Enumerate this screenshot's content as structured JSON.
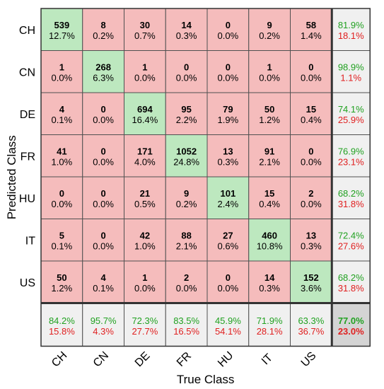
{
  "chart_data": {
    "type": "heatmap",
    "subtype": "confusion-matrix",
    "xlabel": "True Class",
    "ylabel": "Predicted Class",
    "classes": [
      "CH",
      "CN",
      "DE",
      "FR",
      "HU",
      "IT",
      "US"
    ],
    "counts": [
      [
        539,
        8,
        30,
        14,
        0,
        9,
        58
      ],
      [
        1,
        268,
        1,
        0,
        0,
        1,
        0
      ],
      [
        4,
        0,
        694,
        95,
        79,
        50,
        15
      ],
      [
        41,
        0,
        171,
        1052,
        13,
        91,
        0
      ],
      [
        0,
        0,
        21,
        9,
        101,
        15,
        2
      ],
      [
        5,
        0,
        42,
        88,
        27,
        460,
        13
      ],
      [
        50,
        4,
        1,
        2,
        0,
        14,
        152
      ]
    ],
    "percents": [
      [
        "12.7%",
        "0.2%",
        "0.7%",
        "0.3%",
        "0.0%",
        "0.2%",
        "1.4%"
      ],
      [
        "0.0%",
        "6.3%",
        "0.0%",
        "0.0%",
        "0.0%",
        "0.0%",
        "0.0%"
      ],
      [
        "0.1%",
        "0.0%",
        "16.4%",
        "2.2%",
        "1.9%",
        "1.2%",
        "0.4%"
      ],
      [
        "1.0%",
        "0.0%",
        "4.0%",
        "24.8%",
        "0.3%",
        "2.1%",
        "0.0%"
      ],
      [
        "0.0%",
        "0.0%",
        "0.5%",
        "0.2%",
        "2.4%",
        "0.4%",
        "0.0%"
      ],
      [
        "0.1%",
        "0.0%",
        "1.0%",
        "2.1%",
        "0.6%",
        "10.8%",
        "0.3%"
      ],
      [
        "1.2%",
        "0.1%",
        "0.0%",
        "0.0%",
        "0.0%",
        "0.3%",
        "3.6%"
      ]
    ],
    "row_summary": [
      [
        "81.9%",
        "18.1%"
      ],
      [
        "98.9%",
        "1.1%"
      ],
      [
        "74.1%",
        "25.9%"
      ],
      [
        "76.9%",
        "23.1%"
      ],
      [
        "68.2%",
        "31.8%"
      ],
      [
        "72.4%",
        "27.6%"
      ],
      [
        "68.2%",
        "31.8%"
      ]
    ],
    "column_summary": [
      [
        "84.2%",
        "15.8%"
      ],
      [
        "95.7%",
        "4.3%"
      ],
      [
        "72.3%",
        "27.7%"
      ],
      [
        "83.5%",
        "16.5%"
      ],
      [
        "45.9%",
        "54.1%"
      ],
      [
        "71.9%",
        "28.1%"
      ],
      [
        "63.3%",
        "36.7%"
      ]
    ],
    "overall": [
      "77.0%",
      "23.0%"
    ],
    "colors": {
      "diagonal": "#bde8bf",
      "off_diagonal": "#f5bcbc",
      "summary": "#f0f0f0",
      "overall": "#d4d4d4",
      "good_text": "#21a121",
      "bad_text": "#e02020",
      "grid": "#505050"
    }
  }
}
